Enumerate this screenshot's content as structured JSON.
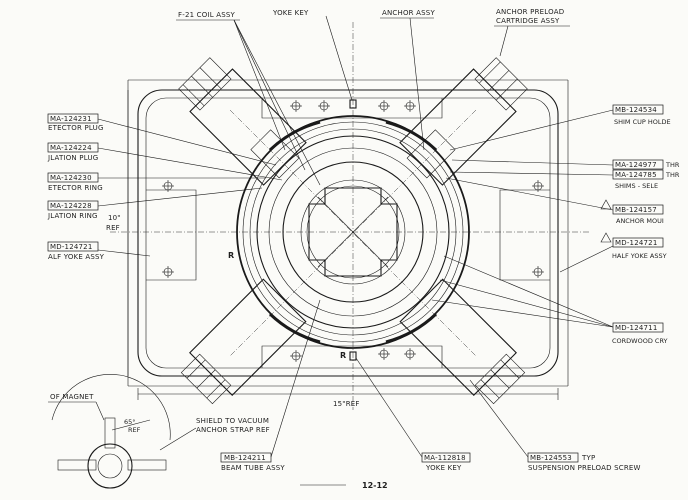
{
  "top_labels": {
    "coil_assy": "F-21 COIL ASSY",
    "yoke_key": "YOKE KEY",
    "anchor_assy": "ANCHOR ASSY",
    "anchor_preload_1": "ANCHOR PRELOAD",
    "anchor_preload_2": "CARTRIDGE ASSY"
  },
  "left_callouts": [
    {
      "part": "MA-124231",
      "desc": "ETECTOR PLUG"
    },
    {
      "part": "MA-124224",
      "desc": "JLATION PLUG"
    },
    {
      "part": "MA-124230",
      "desc": "ETECTOR RING"
    },
    {
      "part": "MA-124228",
      "desc": "JLATION RING"
    },
    {
      "part": "MD-124721",
      "desc": "ALF YOKE ASSY"
    }
  ],
  "right_callouts": [
    {
      "part": "MB-124534",
      "desc": "SHIM CUP HOLDE"
    },
    {
      "part": "MA-124977",
      "desc": "THR"
    },
    {
      "part": "MA-124785",
      "desc": "THR"
    },
    {
      "part": "",
      "desc": "SHIMS - SELE"
    },
    {
      "part": "MB-124157",
      "desc": "ANCHOR MOUI"
    },
    {
      "part": "MD-124721",
      "desc": "HALF YOKE ASSY"
    },
    {
      "part": "MD-124711",
      "desc": "CORDWOOD CRY"
    }
  ],
  "dimensions": {
    "height_1": "10\"",
    "height_2": "REF",
    "width": "15\"REF"
  },
  "marks": {
    "r_left": "R",
    "r_bottom": "R"
  },
  "bottom_callouts": {
    "magnet": "OF MAGNET",
    "angle": "65°",
    "angle_ref": "REF",
    "shield_1": "SHIELD TO VACUUM",
    "shield_2": "ANCHOR STRAP REF",
    "beam_tube_part": "MB-124211",
    "beam_tube_desc": "BEAM TUBE ASSY",
    "yoke_key_part": "MA-112818",
    "yoke_key_desc": "YOKE KEY",
    "screw_part": "MB-124553",
    "screw_typ": "TYP",
    "screw_desc": "SUSPENSION PRELOAD SCREW"
  },
  "figure": {
    "number": "12-12"
  }
}
